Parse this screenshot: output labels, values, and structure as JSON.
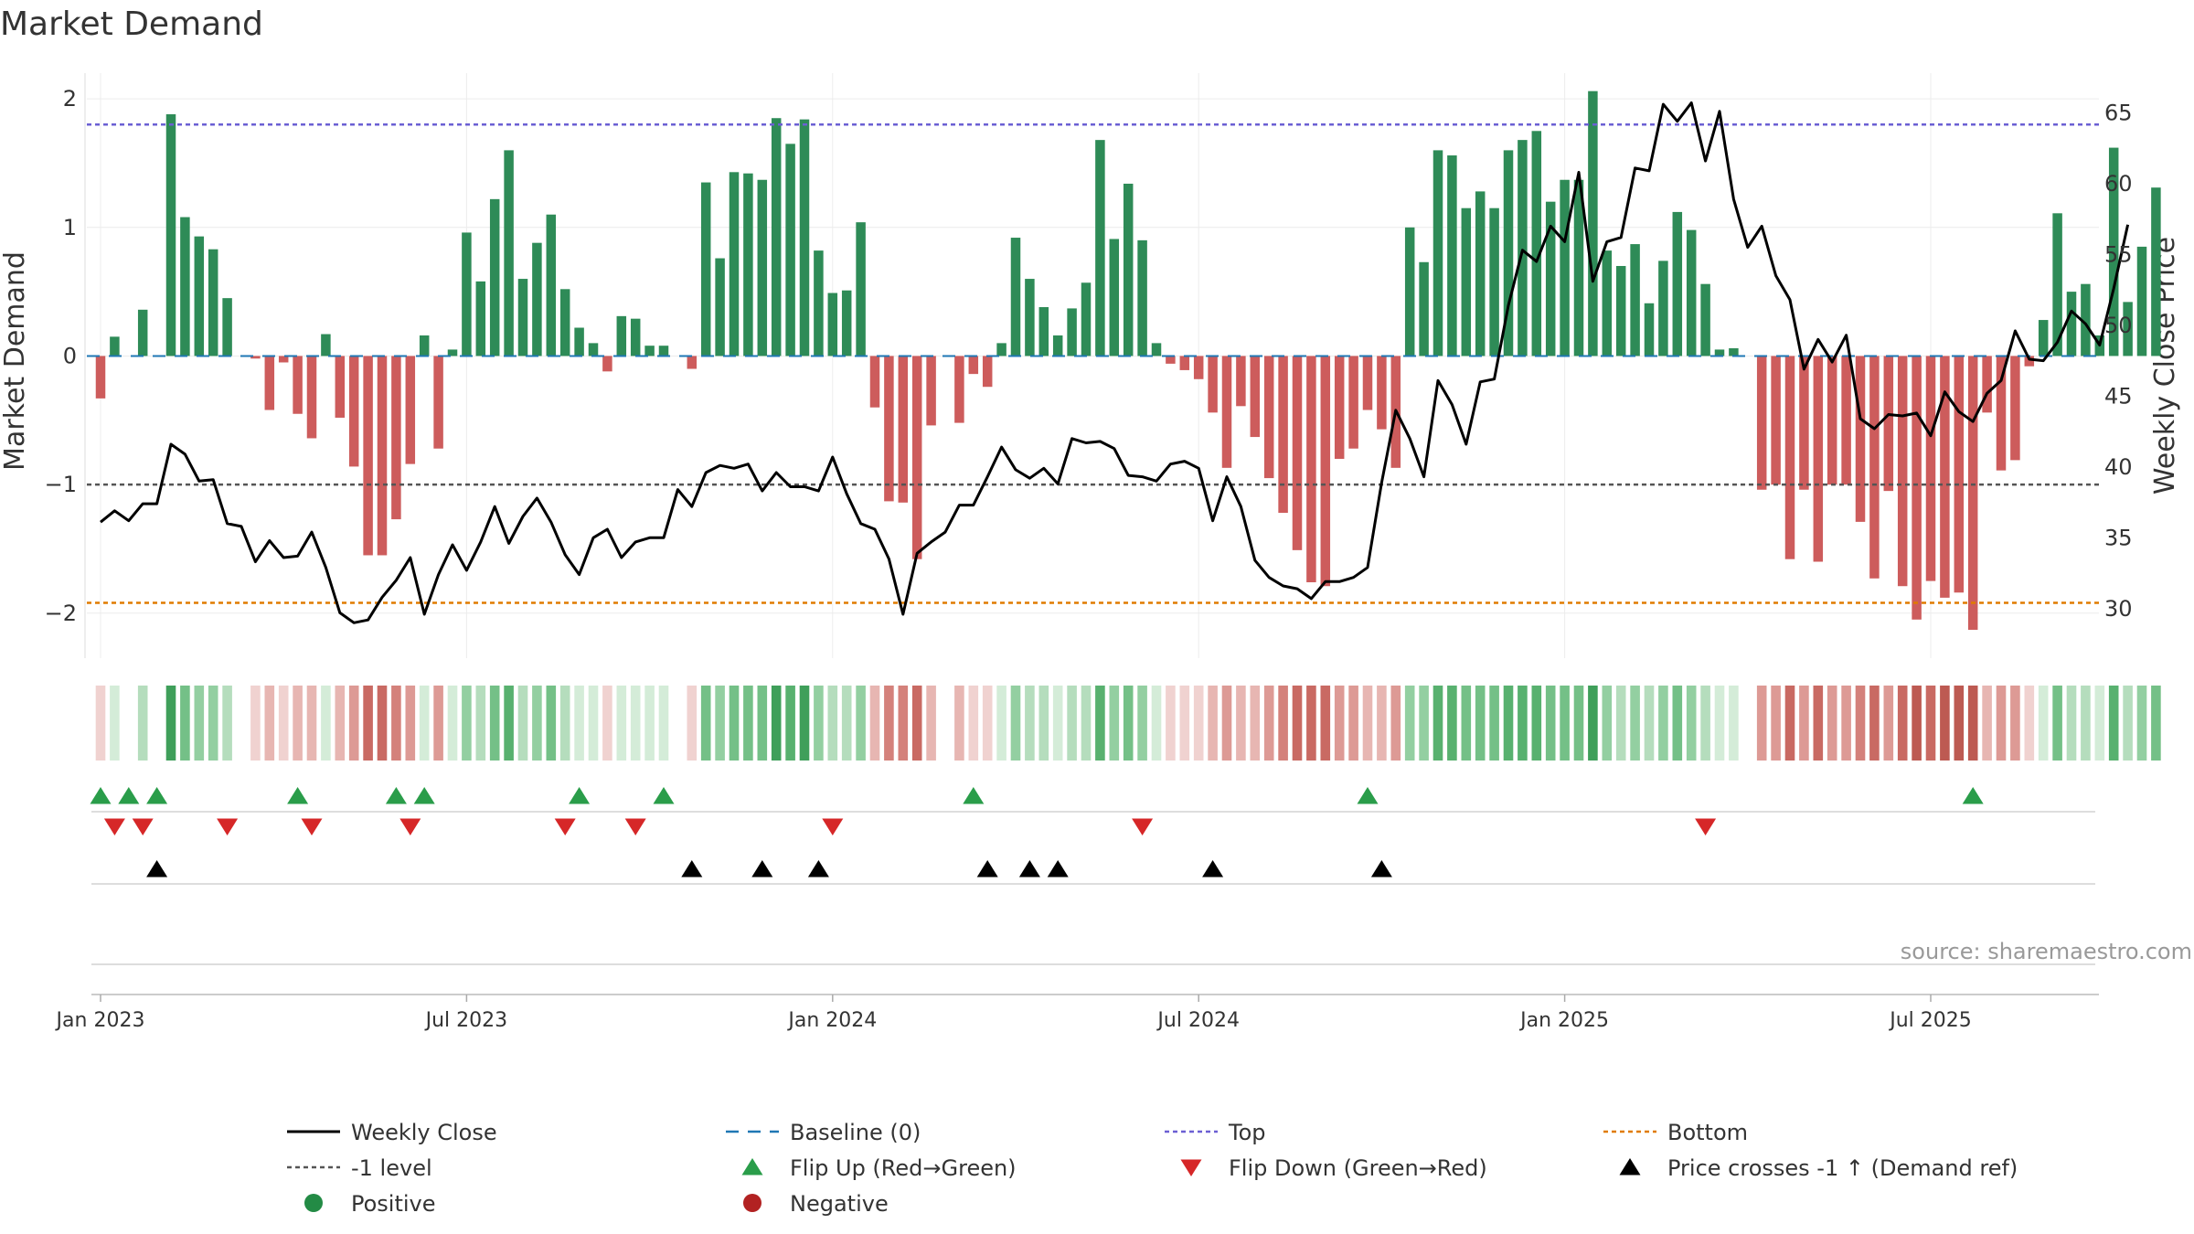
{
  "chart_data": {
    "type": "bar+line",
    "title": "Market Demand",
    "ylabel_left": "Market Demand",
    "ylabel_right": "Weekly Close Price",
    "ylim_left": [
      -2.35,
      2.2
    ],
    "ylim_right": [
      26.5,
      67.8
    ],
    "yticks_left": [
      2,
      1,
      0,
      -1,
      -2
    ],
    "ytick_labels_left": [
      "2",
      "1",
      "0",
      "−1",
      "−2"
    ],
    "yticks_right": [
      65,
      60,
      55,
      50,
      45,
      40,
      35,
      30
    ],
    "ytick_labels_right": [
      "65",
      "60",
      "55",
      "50",
      "45",
      "40",
      "35",
      "30"
    ],
    "x_start_week": 0,
    "x_end_week": 144,
    "xticks": [
      {
        "week": 0,
        "label": "Jan 2023"
      },
      {
        "week": 26,
        "label": "Jul 2023"
      },
      {
        "week": 52,
        "label": "Jan 2024"
      },
      {
        "week": 78,
        "label": "Jul 2024"
      },
      {
        "week": 104,
        "label": "Jan 2025"
      },
      {
        "week": 130,
        "label": "Jul 2025"
      }
    ],
    "levels": {
      "top": 1.8,
      "minus_one": -1.0,
      "bottom": -1.92,
      "baseline": 0
    },
    "demand": [
      -0.33,
      0.15,
      0,
      0.36,
      0,
      1.88,
      1.08,
      0.93,
      0.83,
      0.45,
      0,
      -0.02,
      -0.42,
      -0.05,
      -0.45,
      -0.64,
      0.17,
      -0.48,
      -0.86,
      -1.55,
      -1.55,
      -1.27,
      -0.84,
      0.16,
      -0.72,
      0.05,
      0.96,
      0.58,
      1.22,
      1.6,
      0.6,
      0.88,
      1.1,
      0.52,
      0.22,
      0.1,
      -0.12,
      0.31,
      0.29,
      0.08,
      0.08,
      0,
      -0.1,
      1.35,
      0.76,
      1.43,
      1.42,
      1.37,
      1.85,
      1.65,
      1.84,
      0.82,
      0.49,
      0.51,
      1.04,
      -0.4,
      -1.13,
      -1.14,
      -1.58,
      -0.54,
      0,
      -0.52,
      -0.14,
      -0.24,
      0.1,
      0.92,
      0.6,
      0.38,
      0.16,
      0.37,
      0.57,
      1.68,
      0.91,
      1.34,
      0.9,
      0.1,
      -0.06,
      -0.11,
      -0.18,
      -0.44,
      -0.87,
      -0.39,
      -0.63,
      -0.95,
      -1.22,
      -1.51,
      -1.76,
      -1.79,
      -0.8,
      -0.72,
      -0.42,
      -0.57,
      -0.87,
      1.0,
      0.73,
      1.6,
      1.56,
      1.15,
      1.28,
      1.15,
      1.6,
      1.68,
      1.75,
      1.2,
      1.37,
      1.37,
      2.06,
      0.82,
      0.7,
      0.87,
      0.41,
      0.74,
      1.12,
      0.98,
      0.56,
      0.05,
      0.06,
      0,
      -1.04,
      -1.0,
      -1.58,
      -1.04,
      -1.6,
      -1.0,
      -1.0,
      -1.29,
      -1.73,
      -1.05,
      -1.79,
      -2.05,
      -1.75,
      -1.88,
      -1.84,
      -2.13,
      -0.44,
      -0.89,
      -0.81,
      -0.08,
      0.28,
      1.11,
      0.5,
      0.56,
      0.16,
      1.62,
      0.42,
      0.85,
      1.31
    ],
    "close": [
      36.1,
      36.9,
      36.2,
      37.4,
      37.4,
      41.6,
      40.9,
      39.0,
      39.1,
      36.0,
      35.8,
      33.3,
      34.8,
      33.6,
      33.7,
      35.4,
      32.9,
      29.7,
      29.0,
      29.2,
      30.8,
      32.0,
      33.6,
      29.6,
      32.4,
      34.5,
      32.7,
      34.7,
      37.2,
      34.6,
      36.5,
      37.8,
      36.1,
      33.8,
      32.4,
      35.0,
      35.6,
      33.6,
      34.7,
      35.0,
      35.0,
      38.4,
      37.2,
      39.6,
      40.1,
      39.9,
      40.2,
      38.3,
      39.6,
      38.6,
      38.6,
      38.3,
      40.7,
      38.1,
      36.0,
      35.6,
      33.5,
      29.6,
      33.9,
      34.7,
      35.4,
      37.3,
      37.3,
      39.3,
      41.4,
      39.8,
      39.2,
      39.9,
      38.8,
      42.0,
      41.7,
      41.8,
      41.3,
      39.4,
      39.3,
      39.0,
      40.2,
      40.4,
      39.9,
      36.2,
      39.3,
      37.2,
      33.4,
      32.2,
      31.6,
      31.4,
      30.7,
      31.9,
      31.9,
      32.2,
      32.9,
      38.9,
      44.0,
      42.0,
      39.3,
      46.1,
      44.4,
      41.6,
      46.0,
      46.2,
      51.4,
      55.3,
      54.5,
      57.0,
      55.9,
      60.8,
      53.1,
      55.9,
      56.2,
      61.1,
      60.9,
      65.6,
      64.4,
      65.7,
      61.6,
      65.1,
      58.9,
      55.5,
      57.0,
      53.5,
      51.8,
      46.9,
      49.0,
      47.4,
      49.3,
      43.4,
      42.7,
      43.7,
      43.6,
      43.8,
      42.2,
      45.3,
      43.9,
      43.2,
      45.2,
      46.1,
      49.6,
      47.6,
      47.5,
      48.8,
      51.0,
      50.1,
      48.6,
      52.6,
      57.1
    ],
    "flip_up_weeks": [
      0,
      2,
      4,
      14,
      21,
      23,
      34,
      40,
      62,
      90,
      133
    ],
    "flip_down_weeks": [
      1,
      3,
      9,
      15,
      22,
      33,
      38,
      52,
      74,
      114
    ],
    "price_cross_weeks": [
      4,
      42,
      47,
      51,
      63,
      66,
      68,
      79,
      91
    ],
    "legend": [
      {
        "label": "Weekly Close",
        "kind": "solid-line",
        "color": "#000000"
      },
      {
        "label": "Baseline (0)",
        "kind": "dashed-line",
        "color": "#1f77b4"
      },
      {
        "label": "Top",
        "kind": "dotted-line",
        "color": "#6b5fd3"
      },
      {
        "label": "Bottom",
        "kind": "dotted-line",
        "color": "#e07b00"
      },
      {
        "label": "-1 level",
        "kind": "dotted-line",
        "color": "#555555"
      },
      {
        "label": "Flip Up (Red→Green)",
        "kind": "triangle-up",
        "color": "#2a9d4a"
      },
      {
        "label": "Flip Down (Green→Red)",
        "kind": "triangle-down",
        "color": "#d62728"
      },
      {
        "label": "Price crosses -1 ↑ (Demand ref)",
        "kind": "triangle-up",
        "color": "#000000"
      },
      {
        "label": "Positive",
        "kind": "circle",
        "color": "#238b45"
      },
      {
        "label": "Negative",
        "kind": "circle",
        "color": "#b22222"
      }
    ],
    "source": "source: sharemaestro.com"
  },
  "colors": {
    "positive_bar": "#2e8b57",
    "negative_bar": "#cd5c5c",
    "close_line": "#000000",
    "baseline": "#1f77b4",
    "top": "#6b5fd3",
    "bottom": "#e07b00",
    "minus_one": "#555555",
    "flip_up": "#2a9d4a",
    "flip_down": "#d62728",
    "cross": "#000000"
  }
}
